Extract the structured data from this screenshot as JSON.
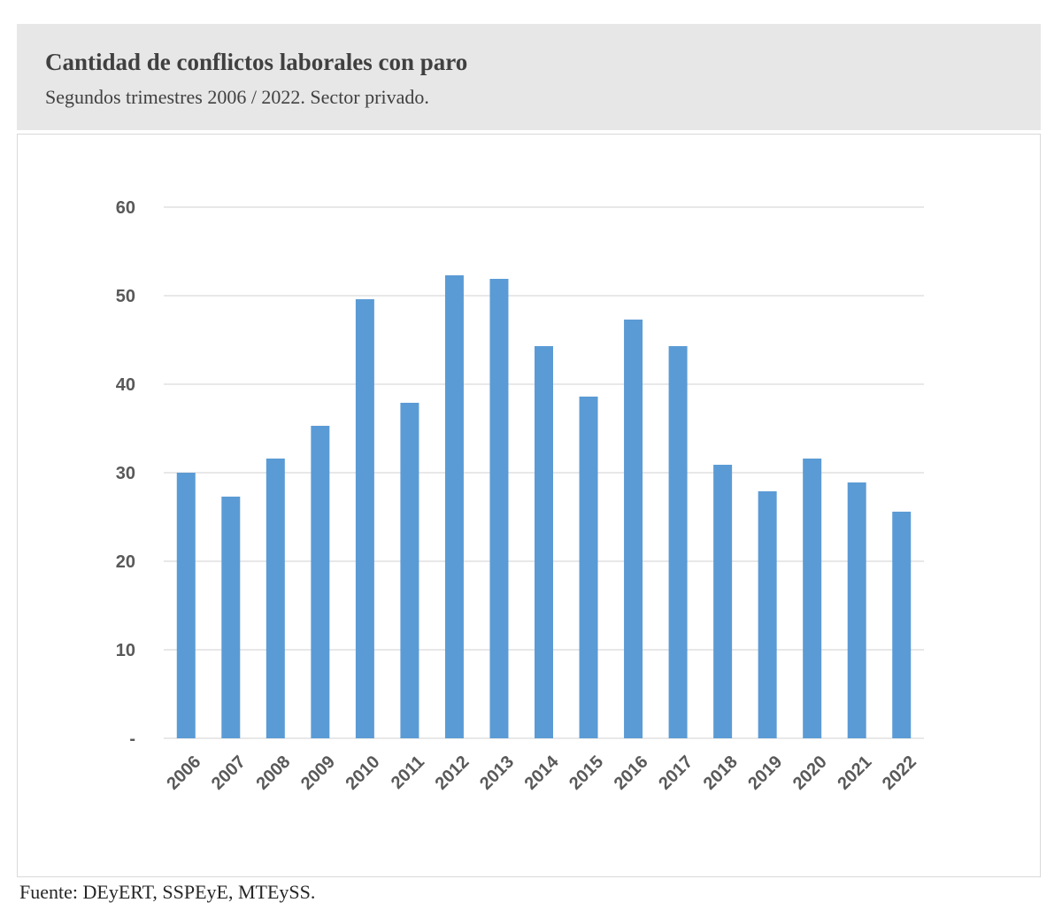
{
  "header": {
    "title": "Cantidad de conflictos laborales con paro",
    "subtitle": "Segundos trimestres 2006 / 2022. Sector privado."
  },
  "footer": {
    "source": "Fuente: DEyERT, SSPEyE, MTEySS."
  },
  "chart_data": {
    "type": "bar",
    "title": "Cantidad de conflictos laborales con paro",
    "subtitle": "Segundos trimestres 2006 / 2022. Sector privado.",
    "categories": [
      "2006",
      "2007",
      "2008",
      "2009",
      "2010",
      "2011",
      "2012",
      "2013",
      "2014",
      "2015",
      "2016",
      "2017",
      "2018",
      "2019",
      "2020",
      "2021",
      "2022"
    ],
    "values": [
      30,
      27.3,
      31.6,
      35.3,
      49.6,
      37.9,
      52.3,
      51.9,
      44.3,
      38.6,
      47.3,
      44.3,
      30.9,
      27.9,
      31.6,
      28.9,
      25.6
    ],
    "ylim": [
      0,
      60
    ],
    "yticks": [
      {
        "value": 0,
        "label": "-"
      },
      {
        "value": 10,
        "label": "10"
      },
      {
        "value": 20,
        "label": "20"
      },
      {
        "value": 30,
        "label": "30"
      },
      {
        "value": 40,
        "label": "40"
      },
      {
        "value": 50,
        "label": "50"
      },
      {
        "value": 60,
        "label": "60"
      }
    ],
    "xlabel": "",
    "ylabel": "",
    "grid": true,
    "legend": "none",
    "colors": {
      "bar": "#5b9bd5",
      "grid": "#d9d9d9",
      "tick_text": "#595959"
    }
  }
}
